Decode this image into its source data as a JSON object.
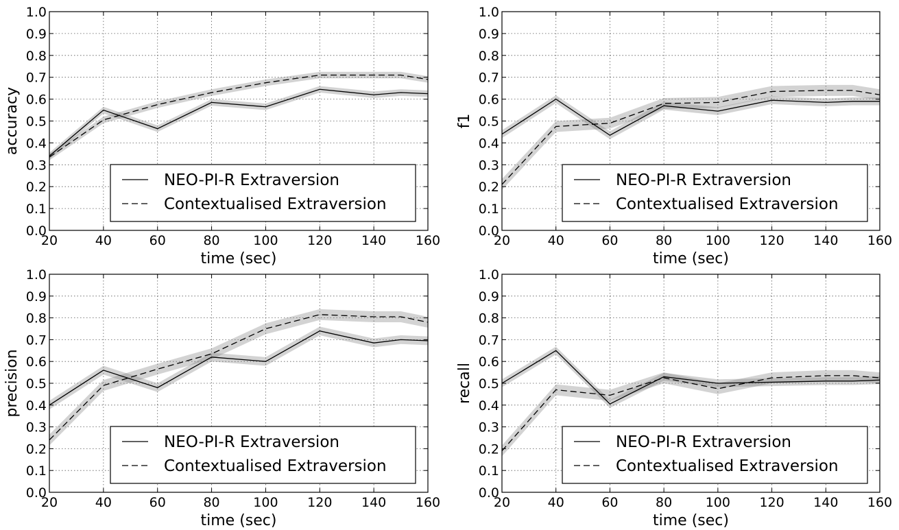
{
  "chart_data": [
    {
      "type": "line",
      "xlabel": "time (sec)",
      "ylabel": "accuracy",
      "xlim": [
        20,
        160
      ],
      "ylim": [
        0.0,
        1.0
      ],
      "grid": true,
      "legend": "lower-right",
      "x_ticks": [
        "20",
        "40",
        "60",
        "80",
        "100",
        "120",
        "140",
        "160"
      ],
      "y_ticks": [
        "0.0",
        "0.1",
        "0.2",
        "0.3",
        "0.4",
        "0.5",
        "0.6",
        "0.7",
        "0.8",
        "0.9",
        "1.0"
      ],
      "series": [
        {
          "name": "NEO-PI-R Extraversion",
          "style": "solid",
          "x": [
            20,
            40,
            60,
            80,
            100,
            120,
            140,
            150,
            160
          ],
          "values": [
            0.34,
            0.55,
            0.465,
            0.585,
            0.565,
            0.645,
            0.62,
            0.63,
            0.625
          ],
          "band": 0.015
        },
        {
          "name": "Contextualised Extraversion",
          "style": "dashed",
          "x": [
            20,
            40,
            60,
            80,
            100,
            120,
            140,
            150,
            160
          ],
          "values": [
            0.335,
            0.505,
            0.575,
            0.63,
            0.675,
            0.71,
            0.71,
            0.71,
            0.69
          ],
          "band": 0.015
        }
      ]
    },
    {
      "type": "line",
      "xlabel": "time (sec)",
      "ylabel": "f1",
      "xlim": [
        20,
        160
      ],
      "ylim": [
        0.0,
        1.0
      ],
      "grid": true,
      "legend": "lower-right",
      "x_ticks": [
        "20",
        "40",
        "60",
        "80",
        "100",
        "120",
        "140",
        "160"
      ],
      "y_ticks": [
        "0.0",
        "0.1",
        "0.2",
        "0.3",
        "0.4",
        "0.5",
        "0.6",
        "0.7",
        "0.8",
        "0.9",
        "1.0"
      ],
      "series": [
        {
          "name": "NEO-PI-R Extraversion",
          "style": "solid",
          "x": [
            20,
            40,
            60,
            80,
            100,
            120,
            140,
            150,
            160
          ],
          "values": [
            0.44,
            0.6,
            0.435,
            0.57,
            0.545,
            0.595,
            0.585,
            0.59,
            0.59
          ],
          "band": 0.018
        },
        {
          "name": "Contextualised Extraversion",
          "style": "dashed",
          "x": [
            20,
            40,
            60,
            80,
            100,
            120,
            140,
            150,
            160
          ],
          "values": [
            0.21,
            0.475,
            0.49,
            0.58,
            0.585,
            0.635,
            0.64,
            0.64,
            0.62
          ],
          "band": 0.025
        }
      ]
    },
    {
      "type": "line",
      "xlabel": "time (sec)",
      "ylabel": "precision",
      "xlim": [
        20,
        160
      ],
      "ylim": [
        0.0,
        1.0
      ],
      "grid": true,
      "legend": "lower-right",
      "x_ticks": [
        "20",
        "40",
        "60",
        "80",
        "100",
        "120",
        "140",
        "160"
      ],
      "y_ticks": [
        "0.0",
        "0.1",
        "0.2",
        "0.3",
        "0.4",
        "0.5",
        "0.6",
        "0.7",
        "0.8",
        "0.9",
        "1.0"
      ],
      "series": [
        {
          "name": "NEO-PI-R Extraversion",
          "style": "solid",
          "x": [
            20,
            40,
            60,
            80,
            100,
            120,
            140,
            150,
            160
          ],
          "values": [
            0.4,
            0.56,
            0.48,
            0.62,
            0.6,
            0.74,
            0.685,
            0.7,
            0.695
          ],
          "band": 0.02
        },
        {
          "name": "Contextualised Extraversion",
          "style": "dashed",
          "x": [
            20,
            40,
            60,
            80,
            100,
            120,
            140,
            150,
            160
          ],
          "values": [
            0.24,
            0.49,
            0.565,
            0.635,
            0.75,
            0.815,
            0.805,
            0.805,
            0.78
          ],
          "band": 0.025
        }
      ]
    },
    {
      "type": "line",
      "xlabel": "time (sec)",
      "ylabel": "recall",
      "xlim": [
        20,
        160
      ],
      "ylim": [
        0.0,
        1.0
      ],
      "grid": true,
      "legend": "lower-right",
      "x_ticks": [
        "20",
        "40",
        "60",
        "80",
        "100",
        "120",
        "140",
        "160"
      ],
      "y_ticks": [
        "0.0",
        "0.1",
        "0.2",
        "0.3",
        "0.4",
        "0.5",
        "0.6",
        "0.7",
        "0.8",
        "0.9",
        "1.0"
      ],
      "series": [
        {
          "name": "NEO-PI-R Extraversion",
          "style": "solid",
          "x": [
            20,
            40,
            60,
            80,
            100,
            120,
            140,
            150,
            160
          ],
          "values": [
            0.5,
            0.65,
            0.405,
            0.53,
            0.5,
            0.505,
            0.51,
            0.51,
            0.515
          ],
          "band": 0.018
        },
        {
          "name": "Contextualised Extraversion",
          "style": "dashed",
          "x": [
            20,
            40,
            60,
            80,
            100,
            120,
            140,
            150,
            160
          ],
          "values": [
            0.19,
            0.47,
            0.445,
            0.525,
            0.475,
            0.525,
            0.535,
            0.535,
            0.525
          ],
          "band": 0.025
        }
      ]
    }
  ]
}
